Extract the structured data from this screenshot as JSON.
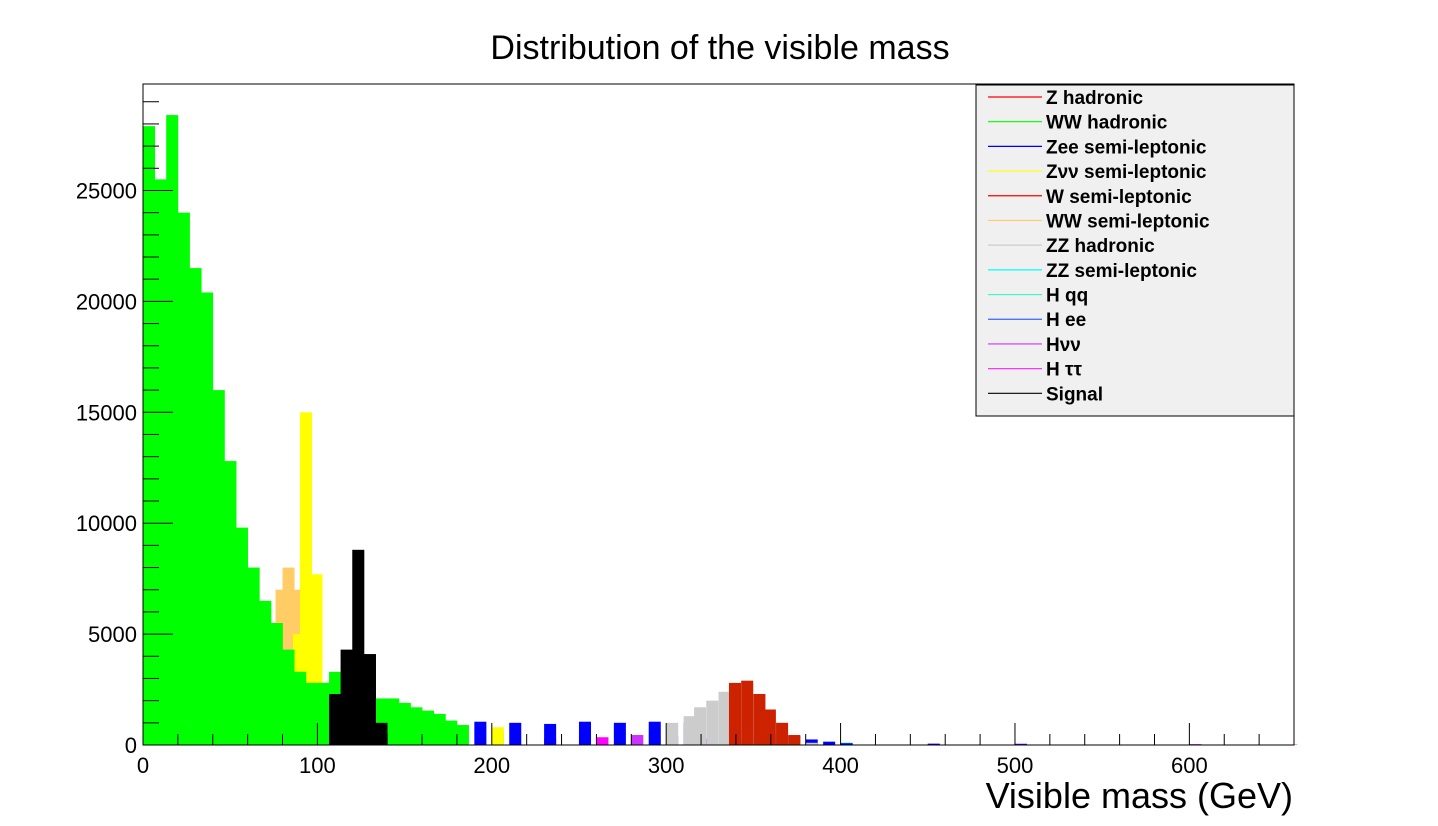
{
  "chart_data": {
    "type": "bar",
    "title": "Distribution of the visible mass",
    "xlabel": "Visible mass (GeV)",
    "ylabel": "",
    "xlim": [
      0,
      660
    ],
    "ylim": [
      0,
      29800
    ],
    "x_ticks": [
      0,
      100,
      200,
      300,
      400,
      500,
      600
    ],
    "y_ticks": [
      0,
      5000,
      10000,
      15000,
      20000,
      25000
    ],
    "grid": false,
    "stacked": true,
    "bin_width": 6.67,
    "legend_position": "top-right",
    "legend": [
      {
        "name": "Z hadronic",
        "color": "#ff0000"
      },
      {
        "name": "WW hadronic",
        "color": "#00ff00"
      },
      {
        "name": "Zee semi-leptonic",
        "color": "#0000ff"
      },
      {
        "name": "Zνν semi-leptonic",
        "color": "#ffff00"
      },
      {
        "name": "W semi-leptonic",
        "color": "#ff0000"
      },
      {
        "name": "WW semi-leptonic",
        "color": "#ffcc66"
      },
      {
        "name": "ZZ hadronic",
        "color": "#cccccc"
      },
      {
        "name": "ZZ semi-leptonic",
        "color": "#00ffff"
      },
      {
        "name": "H qq",
        "color": "#33ffcc"
      },
      {
        "name": "H ee",
        "color": "#3366ff"
      },
      {
        "name": "Hνν",
        "color": "#cc33ff"
      },
      {
        "name": "H ττ",
        "color": "#ff33ff"
      },
      {
        "name": "Signal",
        "color": "#000000"
      }
    ],
    "series": [
      {
        "color": "#ff00ff",
        "points": [
          [
            6.67,
            250
          ],
          [
            40,
            150
          ],
          [
            100,
            150
          ],
          [
            113,
            200
          ],
          [
            140,
            250
          ],
          [
            170,
            280
          ],
          [
            200,
            300
          ],
          [
            230,
            300
          ],
          [
            260,
            350
          ],
          [
            290,
            350
          ],
          [
            310,
            250
          ],
          [
            330,
            150
          ],
          [
            350,
            100
          ],
          [
            370,
            80
          ],
          [
            400,
            60
          ],
          [
            450,
            50
          ],
          [
            500,
            50
          ],
          [
            600,
            30
          ],
          [
            655,
            20
          ]
        ]
      },
      {
        "color": "#cc33ff",
        "points": [
          [
            100,
            250
          ],
          [
            150,
            350
          ],
          [
            200,
            380
          ],
          [
            250,
            420
          ],
          [
            280,
            450
          ],
          [
            300,
            400
          ],
          [
            320,
            280
          ],
          [
            340,
            200
          ],
          [
            360,
            150
          ],
          [
            380,
            100
          ],
          [
            400,
            80
          ],
          [
            500,
            60
          ],
          [
            600,
            40
          ]
        ]
      },
      {
        "color": "#33ffcc",
        "points": [
          [
            60,
            300
          ],
          [
            100,
            400
          ],
          [
            150,
            450
          ],
          [
            200,
            450
          ],
          [
            250,
            480
          ],
          [
            290,
            500
          ],
          [
            310,
            400
          ],
          [
            330,
            300
          ],
          [
            360,
            200
          ],
          [
            400,
            100
          ]
        ]
      },
      {
        "color": "#00ffff",
        "points": [
          [
            0,
            150
          ],
          [
            40,
            200
          ],
          [
            60,
            400
          ],
          [
            70,
            900
          ],
          [
            76,
            1700
          ],
          [
            80,
            3200
          ],
          [
            86,
            4800
          ],
          [
            90,
            8200
          ],
          [
            93,
            5600
          ],
          [
            100,
            2300
          ],
          [
            106,
            1400
          ],
          [
            113,
            1100
          ],
          [
            120,
            900
          ],
          [
            140,
            700
          ],
          [
            170,
            600
          ],
          [
            200,
            550
          ],
          [
            250,
            550
          ],
          [
            290,
            600
          ],
          [
            310,
            500
          ],
          [
            330,
            400
          ],
          [
            350,
            350
          ],
          [
            370,
            200
          ],
          [
            400,
            100
          ]
        ]
      },
      {
        "color": "#ffcc66",
        "points": [
          [
            0,
            200
          ],
          [
            40,
            200
          ],
          [
            60,
            800
          ],
          [
            66,
            2500
          ],
          [
            73,
            4200
          ],
          [
            76,
            7000
          ],
          [
            80,
            8000
          ],
          [
            86,
            7000
          ],
          [
            93,
            2000
          ],
          [
            100,
            1200
          ],
          [
            120,
            900
          ],
          [
            150,
            750
          ],
          [
            200,
            650
          ],
          [
            250,
            650
          ],
          [
            290,
            650
          ]
        ]
      },
      {
        "color": "#ffff00",
        "points": [
          [
            6.67,
            800
          ],
          [
            20,
            650
          ],
          [
            33,
            350
          ],
          [
            86,
            5000
          ],
          [
            90,
            15000
          ],
          [
            93,
            5800
          ],
          [
            96,
            7700
          ],
          [
            100,
            2200
          ],
          [
            106,
            1300
          ],
          [
            120,
            1000
          ],
          [
            150,
            850
          ],
          [
            200,
            800
          ],
          [
            250,
            800
          ],
          [
            290,
            800
          ]
        ]
      },
      {
        "color": "#0000ff",
        "points": [
          [
            100,
            600
          ],
          [
            150,
            900
          ],
          [
            170,
            1000
          ],
          [
            190,
            1050
          ],
          [
            210,
            1000
          ],
          [
            230,
            950
          ],
          [
            250,
            1050
          ],
          [
            270,
            1000
          ],
          [
            290,
            1050
          ],
          [
            310,
            1000
          ],
          [
            330,
            800
          ],
          [
            360,
            500
          ],
          [
            370,
            400
          ],
          [
            380,
            250
          ],
          [
            390,
            150
          ],
          [
            400,
            80
          ],
          [
            450,
            60
          ],
          [
            500,
            40
          ]
        ]
      },
      {
        "color": "#00ff00",
        "points": [
          [
            0,
            27900
          ],
          [
            6.67,
            25500
          ],
          [
            13.3,
            28400
          ],
          [
            20,
            24000
          ],
          [
            26.7,
            21500
          ],
          [
            33.3,
            20400
          ],
          [
            40,
            16000
          ],
          [
            46.7,
            12800
          ],
          [
            53.3,
            9800
          ],
          [
            60,
            8000
          ],
          [
            66.7,
            6500
          ],
          [
            73.3,
            5500
          ],
          [
            80,
            4300
          ],
          [
            86.7,
            3300
          ],
          [
            93.3,
            2800
          ],
          [
            100,
            2800
          ],
          [
            106.7,
            3300
          ],
          [
            113.3,
            2500
          ],
          [
            120,
            2500
          ],
          [
            126.7,
            2300
          ],
          [
            133.3,
            2100
          ],
          [
            140,
            2100
          ],
          [
            146.7,
            1900
          ],
          [
            153.3,
            1700
          ],
          [
            160,
            1550
          ],
          [
            166.7,
            1400
          ],
          [
            173.3,
            1100
          ],
          [
            180,
            900
          ]
        ]
      },
      {
        "color": "#cccccc",
        "points": [
          [
            300,
            1000
          ],
          [
            310,
            1300
          ],
          [
            316,
            1700
          ],
          [
            323,
            2000
          ],
          [
            330,
            2400
          ],
          [
            336,
            2700
          ],
          [
            343,
            2800
          ],
          [
            350,
            2100
          ],
          [
            356,
            1500
          ],
          [
            363,
            900
          ],
          [
            370,
            300
          ],
          [
            380,
            100
          ]
        ]
      },
      {
        "color": "#cc2200",
        "points": [
          [
            336,
            2800
          ],
          [
            343,
            2900
          ],
          [
            350,
            2300
          ],
          [
            356,
            1600
          ],
          [
            363,
            1000
          ],
          [
            370,
            450
          ]
        ]
      },
      {
        "color": "#000000",
        "points": [
          [
            106.7,
            2300
          ],
          [
            113.3,
            4300
          ],
          [
            120,
            8800
          ],
          [
            126.7,
            4100
          ],
          [
            133.3,
            1000
          ]
        ]
      }
    ]
  }
}
